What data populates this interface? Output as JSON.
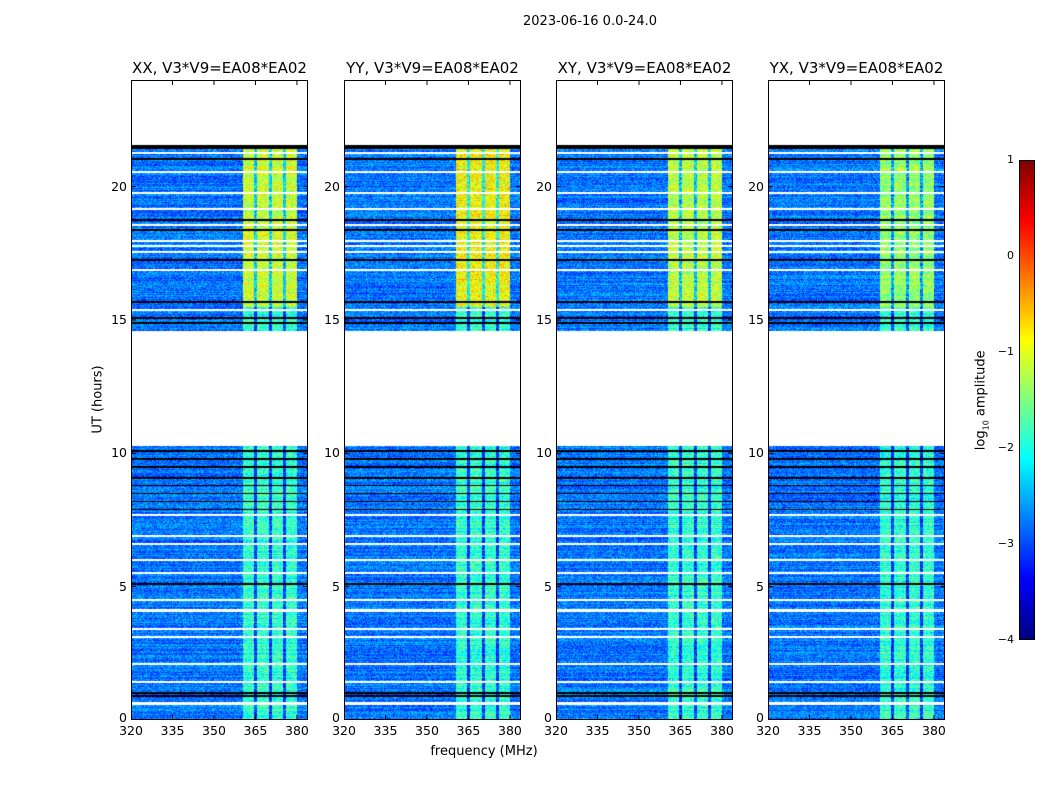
{
  "chart_data": {
    "type": "heatmap",
    "title": "2023-06-16 0.0-24.0",
    "xlabel": "frequency (MHz)",
    "ylabel": "UT (hours)",
    "xlim": [
      320,
      384
    ],
    "ylim": [
      0,
      24
    ],
    "xticks": [
      "320",
      "335",
      "350",
      "365",
      "380"
    ],
    "xtick_values": [
      320,
      335,
      350,
      365,
      380
    ],
    "yticks": [
      "0",
      "5",
      "10",
      "15",
      "20"
    ],
    "ytick_values": [
      0,
      5,
      10,
      15,
      20
    ],
    "panels": [
      {
        "title": "XX, V3*V9=EA08*EA02",
        "band_peak": -0.3
      },
      {
        "title": "YY, V3*V9=EA08*EA02",
        "band_peak": -0.1
      },
      {
        "title": "XY, V3*V9=EA08*EA02",
        "band_peak": -0.4
      },
      {
        "title": "YX, V3*V9=EA08*EA02",
        "band_peak": -0.6
      }
    ],
    "data_time_ranges": [
      [
        0,
        10.3
      ],
      [
        14.6,
        21.6
      ]
    ],
    "background_log_amplitude": -2.8,
    "band_freq_range": [
      360.5,
      380
    ],
    "band_gaps_mhz": [
      365,
      370.5,
      375.5
    ],
    "flagged_white_hours": [
      0.6,
      1.4,
      2.1,
      3.1,
      3.4,
      4.1,
      4.5,
      5.5,
      6.0,
      6.6,
      6.9,
      7.7,
      15.4,
      16.9,
      17.6,
      17.8,
      18.0,
      18.6,
      19.2,
      19.8,
      20.6,
      21.3
    ],
    "flagged_black_hours": [
      0.9,
      1.0,
      5.1,
      7.9,
      8.2,
      8.5,
      8.8,
      9.1,
      9.5,
      9.8,
      10.1,
      14.9,
      15.1,
      15.7,
      17.3,
      18.4,
      18.8,
      21.1,
      21.5
    ],
    "colorbar": {
      "label_prefix": "log",
      "label_sub": "10",
      "label_suffix": " amplitude",
      "range": [
        -4,
        1
      ],
      "ticks": [
        "−4",
        "−3",
        "−2",
        "−1",
        "0",
        "1"
      ],
      "tick_values": [
        -4,
        -3,
        -2,
        -1,
        0,
        1
      ],
      "colormap": "jet"
    }
  }
}
